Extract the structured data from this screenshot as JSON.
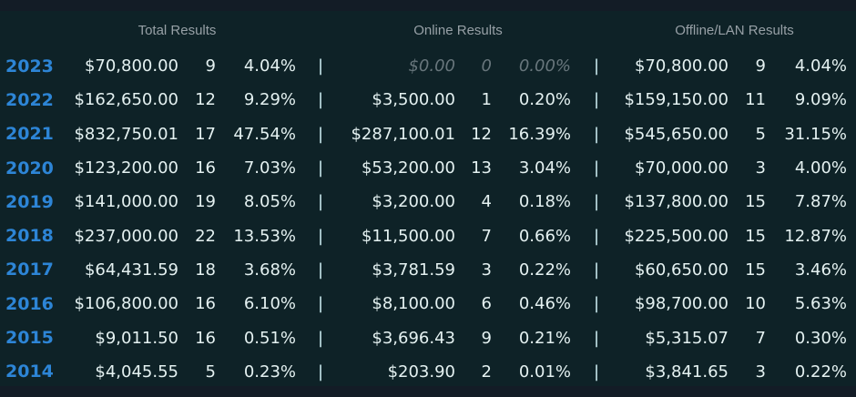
{
  "colors": {
    "bg": "#0e2227",
    "band": "#131c26",
    "text": "#e4f1f1",
    "year": "#2d85d6",
    "header": "#97a0a6",
    "muted": "#68767c",
    "sep": "#cdeef2"
  },
  "table": {
    "separator": "|",
    "headers": [
      {
        "label": "Total Results"
      },
      {
        "label": "Online Results"
      },
      {
        "label": "Offline/LAN Results"
      }
    ],
    "rows": [
      {
        "year": "2023",
        "total": {
          "money": "$70,800.00",
          "count": "9",
          "pct": "4.04%"
        },
        "online": {
          "money": "$0.00",
          "count": "0",
          "pct": "0.00%",
          "muted": true
        },
        "offline": {
          "money": "$70,800.00",
          "count": "9",
          "pct": "4.04%"
        }
      },
      {
        "year": "2022",
        "total": {
          "money": "$162,650.00",
          "count": "12",
          "pct": "9.29%"
        },
        "online": {
          "money": "$3,500.00",
          "count": "1",
          "pct": "0.20%"
        },
        "offline": {
          "money": "$159,150.00",
          "count": "11",
          "pct": "9.09%"
        }
      },
      {
        "year": "2021",
        "total": {
          "money": "$832,750.01",
          "count": "17",
          "pct": "47.54%"
        },
        "online": {
          "money": "$287,100.01",
          "count": "12",
          "pct": "16.39%"
        },
        "offline": {
          "money": "$545,650.00",
          "count": "5",
          "pct": "31.15%"
        }
      },
      {
        "year": "2020",
        "total": {
          "money": "$123,200.00",
          "count": "16",
          "pct": "7.03%"
        },
        "online": {
          "money": "$53,200.00",
          "count": "13",
          "pct": "3.04%"
        },
        "offline": {
          "money": "$70,000.00",
          "count": "3",
          "pct": "4.00%"
        }
      },
      {
        "year": "2019",
        "total": {
          "money": "$141,000.00",
          "count": "19",
          "pct": "8.05%"
        },
        "online": {
          "money": "$3,200.00",
          "count": "4",
          "pct": "0.18%"
        },
        "offline": {
          "money": "$137,800.00",
          "count": "15",
          "pct": "7.87%"
        }
      },
      {
        "year": "2018",
        "total": {
          "money": "$237,000.00",
          "count": "22",
          "pct": "13.53%"
        },
        "online": {
          "money": "$11,500.00",
          "count": "7",
          "pct": "0.66%"
        },
        "offline": {
          "money": "$225,500.00",
          "count": "15",
          "pct": "12.87%"
        }
      },
      {
        "year": "2017",
        "total": {
          "money": "$64,431.59",
          "count": "18",
          "pct": "3.68%"
        },
        "online": {
          "money": "$3,781.59",
          "count": "3",
          "pct": "0.22%"
        },
        "offline": {
          "money": "$60,650.00",
          "count": "15",
          "pct": "3.46%"
        }
      },
      {
        "year": "2016",
        "total": {
          "money": "$106,800.00",
          "count": "16",
          "pct": "6.10%"
        },
        "online": {
          "money": "$8,100.00",
          "count": "6",
          "pct": "0.46%"
        },
        "offline": {
          "money": "$98,700.00",
          "count": "10",
          "pct": "5.63%"
        }
      },
      {
        "year": "2015",
        "total": {
          "money": "$9,011.50",
          "count": "16",
          "pct": "0.51%"
        },
        "online": {
          "money": "$3,696.43",
          "count": "9",
          "pct": "0.21%"
        },
        "offline": {
          "money": "$5,315.07",
          "count": "7",
          "pct": "0.30%"
        }
      },
      {
        "year": "2014",
        "total": {
          "money": "$4,045.55",
          "count": "5",
          "pct": "0.23%"
        },
        "online": {
          "money": "$203.90",
          "count": "2",
          "pct": "0.01%"
        },
        "offline": {
          "money": "$3,841.65",
          "count": "3",
          "pct": "0.22%"
        }
      }
    ]
  }
}
